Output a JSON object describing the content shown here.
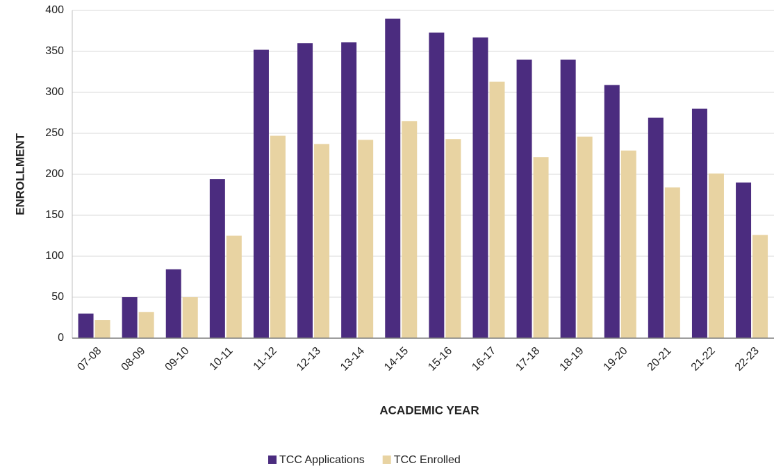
{
  "chart_data": {
    "type": "bar",
    "xlabel": "ACADEMIC YEAR",
    "ylabel": "ENROLLMENT",
    "categories": [
      "07-08",
      "08-09",
      "09-10",
      "10-11",
      "11-12",
      "12-13",
      "13-14",
      "14-15",
      "15-16",
      "16-17",
      "17-18",
      "18-19",
      "19-20",
      "20-21",
      "21-22",
      "22-23"
    ],
    "series": [
      {
        "name": "TCC Applications",
        "color": "#4b2c7f",
        "values": [
          30,
          50,
          84,
          194,
          352,
          360,
          361,
          390,
          373,
          367,
          340,
          340,
          309,
          269,
          280,
          190
        ]
      },
      {
        "name": "TCC Enrolled",
        "color": "#e8d3a2",
        "values": [
          22,
          32,
          50,
          125,
          247,
          237,
          242,
          265,
          243,
          313,
          221,
          246,
          229,
          184,
          201,
          126
        ]
      }
    ],
    "ylim": [
      0,
      400
    ],
    "yticks": [
      0,
      50,
      100,
      150,
      200,
      250,
      300,
      350,
      400
    ],
    "grid": true,
    "legend": "bottom"
  }
}
